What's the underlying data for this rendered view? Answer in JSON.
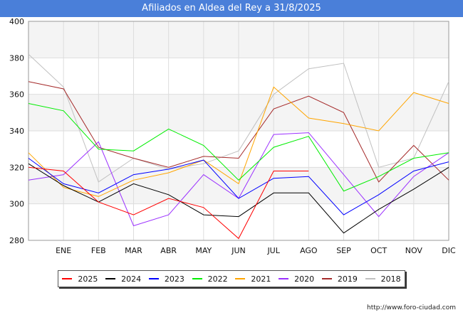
{
  "page": {
    "title": "Afiliados en Aldea del Rey a 31/8/2025",
    "source": "http://www.foro-ciudad.com"
  },
  "chart_data": {
    "type": "line",
    "title": "Afiliados en Aldea del Rey a 31/8/2025",
    "xlabel": "",
    "ylabel": "",
    "categories": [
      "",
      "ENE",
      "FEB",
      "MAR",
      "ABR",
      "MAY",
      "JUN",
      "JUL",
      "AGO",
      "SEP",
      "OCT",
      "NOV",
      "DIC"
    ],
    "ylim": [
      280,
      400
    ],
    "yticks": [
      280,
      300,
      320,
      340,
      360,
      380,
      400
    ],
    "grid": true,
    "legend_position": "bottom",
    "series": [
      {
        "name": "2025",
        "color": "#ff0000",
        "values": [
          320,
          318,
          301,
          294,
          303,
          298,
          281,
          318,
          318,
          null,
          null,
          null,
          null
        ]
      },
      {
        "name": "2024",
        "color": "#000000",
        "values": [
          322,
          310,
          301,
          311,
          305,
          294,
          293,
          306,
          306,
          284,
          297,
          308,
          320
        ]
      },
      {
        "name": "2023",
        "color": "#0000ff",
        "values": [
          325,
          311,
          306,
          316,
          319,
          324,
          303,
          314,
          315,
          294,
          305,
          318,
          323
        ]
      },
      {
        "name": "2022",
        "color": "#00ee00",
        "values": [
          355,
          351,
          330,
          329,
          341,
          332,
          313,
          331,
          337,
          307,
          315,
          325,
          328
        ]
      },
      {
        "name": "2021",
        "color": "#ffa500",
        "values": [
          328,
          309,
          304,
          313,
          317,
          324,
          311,
          364,
          347,
          344,
          340,
          361,
          355
        ]
      },
      {
        "name": "2020",
        "color": "#9b30ff",
        "values": [
          313,
          316,
          334,
          288,
          294,
          316,
          303,
          338,
          339,
          316,
          293,
          315,
          328
        ]
      },
      {
        "name": "2019",
        "color": "#a52a2a",
        "values": [
          367,
          363,
          331,
          325,
          320,
          326,
          325,
          352,
          359,
          350,
          312,
          332,
          313
        ]
      },
      {
        "name": "2018",
        "color": "#c0c0c0",
        "values": [
          382,
          364,
          312,
          325,
          319,
          322,
          329,
          360,
          374,
          377,
          320,
          325,
          367
        ]
      }
    ]
  }
}
